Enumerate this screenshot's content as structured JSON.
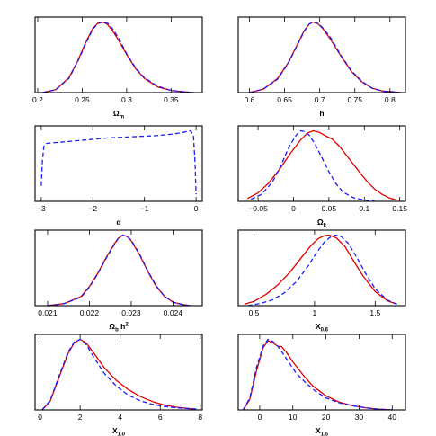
{
  "colors": {
    "solid": "#e00000",
    "dashed": "#1a1aff"
  },
  "chart_data": [
    {
      "type": "line",
      "xlabel": {
        "base": "Ω",
        "sub": "m",
        "sup": ""
      },
      "xlim": [
        0.197,
        0.385
      ],
      "ylim": [
        0,
        1.07
      ],
      "xticks": [
        0.2,
        0.25,
        0.3,
        0.35
      ],
      "xticklabels": [
        "0.2",
        "0.25",
        "0.3",
        "0.35"
      ],
      "series": [
        {
          "style": "solid",
          "x": [
            0.205,
            0.22,
            0.235,
            0.245,
            0.255,
            0.262,
            0.268,
            0.273,
            0.278,
            0.284,
            0.29,
            0.3,
            0.31,
            0.32,
            0.335,
            0.35,
            0.365,
            0.375
          ],
          "y": [
            0.0,
            0.04,
            0.21,
            0.45,
            0.74,
            0.91,
            0.99,
            1.0,
            0.97,
            0.88,
            0.76,
            0.54,
            0.34,
            0.2,
            0.08,
            0.03,
            0.01,
            0.0
          ]
        },
        {
          "style": "dashed",
          "x": [
            0.205,
            0.22,
            0.235,
            0.245,
            0.255,
            0.262,
            0.268,
            0.274,
            0.279,
            0.285,
            0.291,
            0.3,
            0.31,
            0.32,
            0.335,
            0.35,
            0.365,
            0.375
          ],
          "y": [
            0.0,
            0.04,
            0.2,
            0.44,
            0.72,
            0.9,
            0.98,
            1.0,
            0.98,
            0.89,
            0.77,
            0.55,
            0.35,
            0.21,
            0.09,
            0.03,
            0.01,
            0.0
          ]
        }
      ]
    },
    {
      "type": "line",
      "xlabel": {
        "base": "h",
        "sub": "",
        "sup": ""
      },
      "xlim": [
        0.584,
        0.822
      ],
      "ylim": [
        0,
        1.07
      ],
      "xticks": [
        0.6,
        0.65,
        0.7,
        0.75,
        0.8
      ],
      "xticklabels": [
        "0.6",
        "0.65",
        "0.7",
        "0.75",
        "0.8"
      ],
      "series": [
        {
          "style": "solid",
          "x": [
            0.6,
            0.62,
            0.64,
            0.655,
            0.668,
            0.678,
            0.685,
            0.69,
            0.697,
            0.705,
            0.715,
            0.73,
            0.745,
            0.76,
            0.775,
            0.79,
            0.805,
            0.815
          ],
          "y": [
            0.0,
            0.05,
            0.2,
            0.42,
            0.68,
            0.88,
            0.97,
            1.0,
            0.98,
            0.9,
            0.76,
            0.52,
            0.3,
            0.15,
            0.06,
            0.02,
            0.01,
            0.0
          ]
        },
        {
          "style": "dashed",
          "x": [
            0.6,
            0.62,
            0.64,
            0.655,
            0.668,
            0.678,
            0.685,
            0.691,
            0.698,
            0.706,
            0.716,
            0.73,
            0.745,
            0.76,
            0.775,
            0.79,
            0.805,
            0.815
          ],
          "y": [
            0.0,
            0.05,
            0.19,
            0.41,
            0.67,
            0.87,
            0.97,
            1.0,
            0.98,
            0.9,
            0.77,
            0.53,
            0.31,
            0.16,
            0.06,
            0.02,
            0.01,
            0.0
          ]
        }
      ]
    },
    {
      "type": "line",
      "xlabel": {
        "base": "α",
        "sub": "",
        "sup": ""
      },
      "xlim": [
        -3.12,
        0.12
      ],
      "ylim": [
        0,
        1.07
      ],
      "xticks": [
        -3,
        -2,
        -1,
        0
      ],
      "xticklabels": [
        "−3",
        "−2",
        "−1",
        "0"
      ],
      "series": [
        {
          "style": "dashed",
          "x": [
            -3.0,
            -2.98,
            -2.95,
            -2.9,
            -2.8,
            -2.6,
            -2.3,
            -2.0,
            -1.7,
            -1.4,
            -1.1,
            -0.8,
            -0.5,
            -0.3,
            -0.18,
            -0.1,
            -0.05,
            -0.02,
            0.0
          ],
          "y": [
            0.22,
            0.55,
            0.78,
            0.82,
            0.83,
            0.84,
            0.86,
            0.88,
            0.9,
            0.91,
            0.92,
            0.93,
            0.95,
            0.97,
            0.99,
            1.0,
            0.92,
            0.55,
            0.1
          ]
        }
      ]
    },
    {
      "type": "line",
      "xlabel": {
        "base": "Ω",
        "sub": "k",
        "sup": ""
      },
      "xlim": [
        -0.078,
        0.158
      ],
      "ylim": [
        0,
        1.07
      ],
      "xticks": [
        -0.05,
        0,
        0.05,
        0.1,
        0.15
      ],
      "xticklabels": [
        "−0.05",
        "0",
        "0.05",
        "0.1",
        "0.15"
      ],
      "series": [
        {
          "style": "solid",
          "x": [
            -0.065,
            -0.05,
            -0.035,
            -0.02,
            -0.005,
            0.01,
            0.02,
            0.028,
            0.036,
            0.045,
            0.055,
            0.065,
            0.075,
            0.085,
            0.095,
            0.105,
            0.115,
            0.125,
            0.135,
            0.145
          ],
          "y": [
            0.04,
            0.12,
            0.26,
            0.45,
            0.67,
            0.87,
            0.97,
            1.0,
            0.98,
            0.93,
            0.88,
            0.78,
            0.65,
            0.52,
            0.39,
            0.27,
            0.17,
            0.1,
            0.05,
            0.02
          ]
        },
        {
          "style": "dashed",
          "x": [
            -0.06,
            -0.045,
            -0.03,
            -0.018,
            -0.006,
            0.004,
            0.01,
            0.016,
            0.022,
            0.03,
            0.04,
            0.05,
            0.06,
            0.07,
            0.085,
            0.1,
            0.115
          ],
          "y": [
            0.03,
            0.1,
            0.27,
            0.5,
            0.78,
            0.94,
            1.0,
            0.99,
            0.94,
            0.82,
            0.62,
            0.42,
            0.25,
            0.13,
            0.05,
            0.02,
            0.0
          ]
        }
      ]
    },
    {
      "type": "line",
      "xlabel": {
        "base": "Ω",
        "sub": "b",
        "sup": "2",
        "tail": " h"
      },
      "xlim": [
        0.0207,
        0.0247
      ],
      "ylim": [
        0,
        1.07
      ],
      "xticks": [
        0.021,
        0.022,
        0.023,
        0.024
      ],
      "xticklabels": [
        "0.021",
        "0.022",
        "0.023",
        "0.024"
      ],
      "series": [
        {
          "style": "solid",
          "x": [
            0.021,
            0.0214,
            0.0218,
            0.022,
            0.0222,
            0.0224,
            0.0226,
            0.0227,
            0.0228,
            0.0229,
            0.023,
            0.0232,
            0.0234,
            0.0236,
            0.0238,
            0.024,
            0.0242,
            0.0244
          ],
          "y": [
            0.0,
            0.03,
            0.13,
            0.27,
            0.46,
            0.68,
            0.88,
            0.96,
            1.0,
            0.98,
            0.92,
            0.72,
            0.48,
            0.27,
            0.13,
            0.05,
            0.02,
            0.0
          ]
        },
        {
          "style": "dashed",
          "x": [
            0.021,
            0.0214,
            0.0218,
            0.022,
            0.0222,
            0.0224,
            0.0226,
            0.0227,
            0.0228,
            0.0229,
            0.023,
            0.0232,
            0.0234,
            0.0236,
            0.0238,
            0.024,
            0.0242,
            0.0244
          ],
          "y": [
            0.0,
            0.03,
            0.12,
            0.26,
            0.45,
            0.67,
            0.87,
            0.96,
            1.0,
            0.98,
            0.93,
            0.73,
            0.49,
            0.28,
            0.13,
            0.05,
            0.02,
            0.0
          ]
        }
      ]
    },
    {
      "type": "line",
      "xlabel": {
        "base": "X",
        "sub": "0.6",
        "sup": ""
      },
      "xlim": [
        0.37,
        1.75
      ],
      "ylim": [
        0,
        1.07
      ],
      "xticks": [
        0.5,
        1,
        1.5
      ],
      "xticklabels": [
        "0.5",
        "1",
        "1.5"
      ],
      "series": [
        {
          "style": "solid",
          "x": [
            0.42,
            0.5,
            0.6,
            0.7,
            0.8,
            0.9,
            0.97,
            1.03,
            1.08,
            1.12,
            1.18,
            1.25,
            1.32,
            1.4,
            1.5,
            1.6,
            1.68
          ],
          "y": [
            0.02,
            0.06,
            0.16,
            0.3,
            0.48,
            0.7,
            0.85,
            0.95,
            0.99,
            1.0,
            0.96,
            0.84,
            0.64,
            0.42,
            0.2,
            0.07,
            0.02
          ]
        },
        {
          "style": "dashed",
          "x": [
            0.45,
            0.55,
            0.65,
            0.75,
            0.85,
            0.95,
            1.02,
            1.08,
            1.13,
            1.17,
            1.22,
            1.28,
            1.35,
            1.42,
            1.5,
            1.6,
            1.68
          ],
          "y": [
            0.0,
            0.03,
            0.08,
            0.18,
            0.34,
            0.57,
            0.76,
            0.9,
            0.97,
            1.0,
            0.98,
            0.88,
            0.68,
            0.46,
            0.24,
            0.08,
            0.02
          ]
        }
      ]
    },
    {
      "type": "line",
      "xlabel": {
        "base": "X",
        "sub": "1.0",
        "sup": ""
      },
      "xlim": [
        -0.25,
        8.1
      ],
      "ylim": [
        0,
        1.07
      ],
      "xticks": [
        0,
        2,
        4,
        6,
        8
      ],
      "xticklabels": [
        "0",
        "2",
        "4",
        "6",
        "8"
      ],
      "series": [
        {
          "style": "solid",
          "x": [
            0.1,
            0.5,
            1.0,
            1.4,
            1.7,
            2.0,
            2.3,
            2.7,
            3.2,
            3.8,
            4.4,
            5.0,
            5.6,
            6.2,
            6.8,
            7.4,
            7.8
          ],
          "y": [
            0.0,
            0.12,
            0.5,
            0.8,
            0.95,
            1.0,
            0.95,
            0.8,
            0.6,
            0.42,
            0.29,
            0.19,
            0.12,
            0.07,
            0.04,
            0.02,
            0.01
          ]
        },
        {
          "style": "dashed",
          "x": [
            0.1,
            0.5,
            1.0,
            1.4,
            1.7,
            2.0,
            2.3,
            2.7,
            3.2,
            3.8,
            4.4,
            5.0,
            5.6,
            6.2,
            6.8,
            7.4,
            7.8
          ],
          "y": [
            0.0,
            0.13,
            0.52,
            0.82,
            0.96,
            1.0,
            0.93,
            0.74,
            0.52,
            0.34,
            0.21,
            0.13,
            0.08,
            0.05,
            0.03,
            0.02,
            0.01
          ]
        }
      ]
    },
    {
      "type": "line",
      "xlabel": {
        "base": "X",
        "sub": "1.5",
        "sup": ""
      },
      "xlim": [
        -6.5,
        44
      ],
      "ylim": [
        0,
        1.07
      ],
      "xticks": [
        0,
        10,
        20,
        30,
        40
      ],
      "xticklabels": [
        "0",
        "10",
        "20",
        "30",
        "40"
      ],
      "series": [
        {
          "style": "solid",
          "x": [
            -5,
            -3,
            -1,
            1,
            2.5,
            4,
            5.5,
            6.5,
            8,
            10,
            13,
            16,
            20,
            24,
            28,
            32,
            36,
            40
          ],
          "y": [
            0.0,
            0.15,
            0.55,
            0.88,
            0.98,
            0.95,
            0.9,
            0.9,
            0.82,
            0.68,
            0.5,
            0.34,
            0.2,
            0.11,
            0.06,
            0.03,
            0.01,
            0.0
          ]
        },
        {
          "style": "dashed",
          "x": [
            -5,
            -3,
            -1,
            1,
            2.5,
            4,
            5.5,
            7,
            9,
            11,
            14,
            17,
            20,
            24,
            28,
            32,
            36,
            40
          ],
          "y": [
            0.0,
            0.17,
            0.6,
            0.9,
            1.0,
            0.97,
            0.9,
            0.8,
            0.66,
            0.52,
            0.38,
            0.26,
            0.17,
            0.1,
            0.06,
            0.03,
            0.01,
            0.0
          ]
        }
      ]
    }
  ]
}
